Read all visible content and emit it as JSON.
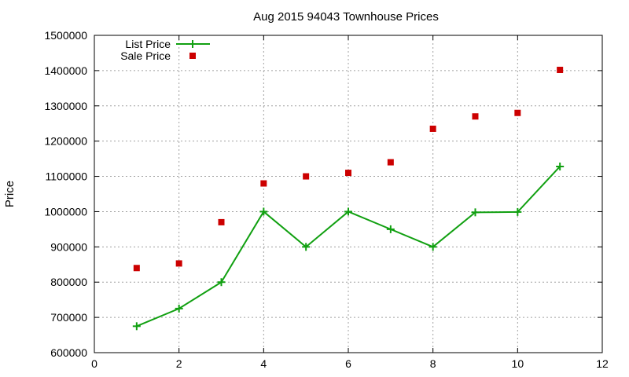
{
  "chart_data": {
    "type": "line",
    "title": "Aug 2015 94043 Townhouse Prices",
    "xlabel": "",
    "ylabel": "Price",
    "xlim": [
      0,
      12
    ],
    "ylim": [
      600000,
      1500000
    ],
    "xticks": [
      0,
      2,
      4,
      6,
      8,
      10,
      12
    ],
    "yticks": [
      600000,
      700000,
      800000,
      900000,
      1000000,
      1100000,
      1200000,
      1300000,
      1400000,
      1500000
    ],
    "grid": true,
    "legend_position": "top-left",
    "series": [
      {
        "name": "List Price",
        "style": "line+crosses",
        "color": "#11a011",
        "x": [
          1,
          2,
          3,
          4,
          5,
          6,
          7,
          8,
          9,
          10,
          11
        ],
        "y": [
          675000,
          725000,
          800000,
          1000000,
          900000,
          1000000,
          950000,
          900000,
          998000,
          999000,
          1128000
        ]
      },
      {
        "name": "Sale Price",
        "style": "squares",
        "color": "#cc0000",
        "x": [
          1,
          2,
          3,
          4,
          5,
          6,
          7,
          8,
          9,
          10,
          11
        ],
        "y": [
          840000,
          853000,
          970000,
          1080000,
          1100000,
          1110000,
          1140000,
          1235000,
          1270000,
          1280000,
          1402000
        ]
      }
    ]
  }
}
